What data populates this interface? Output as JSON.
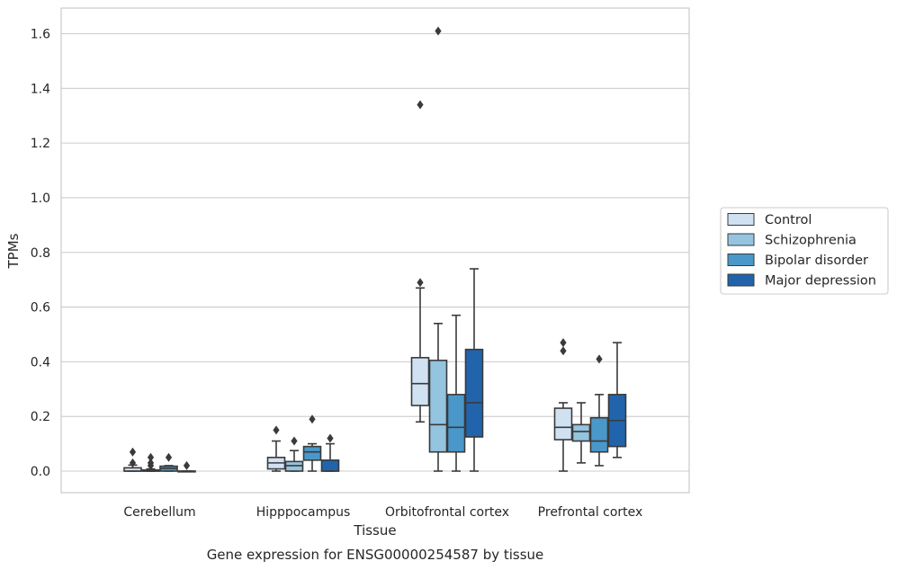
{
  "chart_data": {
    "type": "box",
    "title": "",
    "xlabel": "Tissue",
    "ylabel": "TPMs",
    "caption": "Gene expression for ENSG00000254587 by tissue",
    "ylim": [
      -0.08,
      1.69
    ],
    "yticks": [
      0.0,
      0.2,
      0.4,
      0.6,
      0.8,
      1.0,
      1.2,
      1.4,
      1.6
    ],
    "ytick_labels": [
      "0.0",
      "0.2",
      "0.4",
      "0.6",
      "0.8",
      "1.0",
      "1.2",
      "1.4",
      "1.6"
    ],
    "grid": "horizontal",
    "legend_position": "right",
    "categories": [
      "Cerebellum",
      "Hipppocampus",
      "Orbitofrontal cortex",
      "Prefrontal cortex"
    ],
    "series": [
      {
        "name": "Control",
        "color": "#d0e1f2",
        "boxes": [
          {
            "whislo": 0.0,
            "q1": 0.0,
            "med": 0.0,
            "q3": 0.012,
            "whishi": 0.022,
            "fliers": [
              0.03,
              0.07
            ]
          },
          {
            "whislo": 0.0,
            "q1": 0.008,
            "med": 0.03,
            "q3": 0.05,
            "whishi": 0.11,
            "fliers": [
              0.15
            ]
          },
          {
            "whislo": 0.18,
            "q1": 0.24,
            "med": 0.32,
            "q3": 0.415,
            "whishi": 0.67,
            "fliers": [
              0.69,
              1.34
            ]
          },
          {
            "whislo": 0.0,
            "q1": 0.115,
            "med": 0.16,
            "q3": 0.23,
            "whishi": 0.25,
            "fliers": [
              0.44,
              0.47
            ]
          }
        ]
      },
      {
        "name": "Schizophrenia",
        "color": "#94c4df",
        "boxes": [
          {
            "whislo": 0.0,
            "q1": 0.0,
            "med": 0.0,
            "q3": 0.004,
            "whishi": 0.008,
            "fliers": [
              0.02,
              0.03,
              0.05
            ]
          },
          {
            "whislo": 0.0,
            "q1": 0.0,
            "med": 0.02,
            "q3": 0.035,
            "whishi": 0.075,
            "fliers": [
              0.11
            ]
          },
          {
            "whislo": 0.0,
            "q1": 0.07,
            "med": 0.17,
            "q3": 0.405,
            "whishi": 0.54,
            "fliers": [
              1.61
            ]
          },
          {
            "whislo": 0.03,
            "q1": 0.11,
            "med": 0.145,
            "q3": 0.17,
            "whishi": 0.25,
            "fliers": []
          }
        ]
      },
      {
        "name": "Bipolar disorder",
        "color": "#4a98c9",
        "boxes": [
          {
            "whislo": 0.0,
            "q1": 0.0,
            "med": 0.01,
            "q3": 0.018,
            "whishi": 0.02,
            "fliers": [
              0.05
            ]
          },
          {
            "whislo": 0.0,
            "q1": 0.04,
            "med": 0.07,
            "q3": 0.09,
            "whishi": 0.1,
            "fliers": [
              0.19
            ]
          },
          {
            "whislo": 0.0,
            "q1": 0.07,
            "med": 0.16,
            "q3": 0.28,
            "whishi": 0.57,
            "fliers": []
          },
          {
            "whislo": 0.02,
            "q1": 0.07,
            "med": 0.11,
            "q3": 0.195,
            "whishi": 0.28,
            "fliers": [
              0.41
            ]
          }
        ]
      },
      {
        "name": "Major depression",
        "color": "#2164ab",
        "boxes": [
          {
            "whislo": 0.0,
            "q1": 0.0,
            "med": 0.0,
            "q3": 0.0,
            "whishi": 0.0,
            "fliers": [
              0.02
            ]
          },
          {
            "whislo": 0.0,
            "q1": 0.0,
            "med": 0.0,
            "q3": 0.04,
            "whishi": 0.1,
            "fliers": [
              0.12
            ]
          },
          {
            "whislo": 0.0,
            "q1": 0.125,
            "med": 0.25,
            "q3": 0.445,
            "whishi": 0.74,
            "fliers": []
          },
          {
            "whislo": 0.05,
            "q1": 0.09,
            "med": 0.185,
            "q3": 0.28,
            "whishi": 0.47,
            "fliers": []
          }
        ]
      }
    ]
  }
}
